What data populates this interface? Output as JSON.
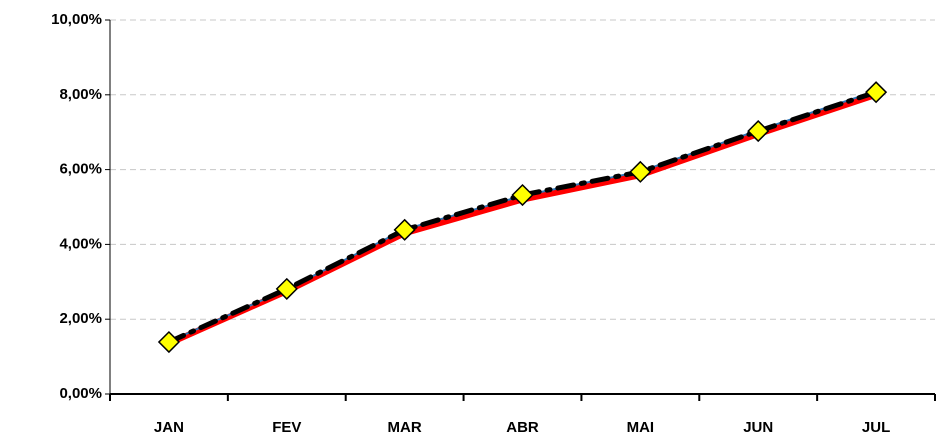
{
  "chart_data": {
    "type": "line",
    "categories": [
      "JAN",
      "FEV",
      "MAR",
      "ABR",
      "MAI",
      "JUN",
      "JUL"
    ],
    "series": [
      {
        "color": "#ff0000",
        "width": 6,
        "values": [
          1.35,
          2.75,
          4.3,
          5.2,
          5.85,
          6.95,
          8.0
        ]
      },
      {
        "color": "#2e75b6",
        "width": 2,
        "values": [
          1.4,
          2.8,
          4.4,
          5.3,
          5.95,
          7.05,
          8.1
        ]
      },
      {
        "color": "#000000",
        "width": 5,
        "line_style": "dashdot",
        "marker": "diamond",
        "marker_color": "#ffff00",
        "values": [
          1.39,
          2.81,
          4.39,
          5.32,
          5.94,
          7.03,
          8.07
        ]
      }
    ],
    "ylim": [
      0,
      10
    ],
    "yticks": [
      {
        "value": 0,
        "label": "0,00%"
      },
      {
        "value": 2,
        "label": "2,00%"
      },
      {
        "value": 4,
        "label": "4,00%"
      },
      {
        "value": 6,
        "label": "6,00%"
      },
      {
        "value": 8,
        "label": "8,00%"
      },
      {
        "value": 10,
        "label": "10,00%"
      }
    ],
    "grid": true
  }
}
